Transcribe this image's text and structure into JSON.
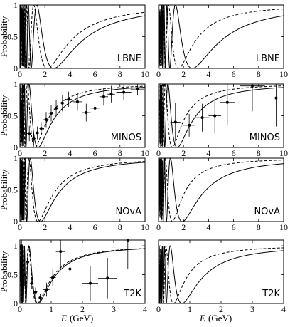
{
  "figure": {
    "y_axis_label": "Probability",
    "x_axis_label_var": "E",
    "x_axis_label_unit": "(GeV)"
  },
  "chart_data": [
    {
      "type": "line",
      "experiment": "LBNE",
      "column": "left",
      "xlim": [
        0,
        10
      ],
      "ylim": [
        0,
        1
      ],
      "xticks": [
        0,
        2,
        4,
        6,
        8,
        10
      ],
      "yticks": [
        0,
        0.5,
        1
      ],
      "ytick_labels": [
        "0",
        "0.5",
        "1"
      ],
      "show_xtick_labels": true,
      "show_ytick_labels": true,
      "series": [
        {
          "style": "solid",
          "min_energy": 2.7
        },
        {
          "style": "dashed",
          "min_energy": 2.2
        }
      ],
      "points": []
    },
    {
      "type": "line",
      "experiment": "LBNE",
      "column": "right",
      "xlim": [
        0,
        10
      ],
      "ylim": [
        0,
        1
      ],
      "xticks": [
        0,
        2,
        4,
        6,
        8,
        10
      ],
      "yticks": [
        0,
        0.5,
        1
      ],
      "show_xtick_labels": true,
      "show_ytick_labels": false,
      "series": [
        {
          "style": "solid",
          "min_energy": 2.7
        },
        {
          "style": "dashed",
          "min_energy": 1.6
        }
      ],
      "points": []
    },
    {
      "type": "scatter",
      "experiment": "MINOS",
      "column": "left",
      "xlim": [
        0,
        10
      ],
      "ylim": [
        0,
        1
      ],
      "xticks": [
        0,
        2,
        4,
        6,
        8,
        10
      ],
      "yticks": [
        0,
        0.5,
        1
      ],
      "ytick_labels": [
        "0",
        "0.5",
        "1"
      ],
      "show_xtick_labels": true,
      "show_ytick_labels": true,
      "series": [
        {
          "style": "solid",
          "min_energy": 1.45
        },
        {
          "style": "dashed",
          "min_energy": 1.2
        }
      ],
      "points": [
        {
          "x": 0.25,
          "y": 0.92,
          "xerr": 0.2,
          "yerr": 0.08
        },
        {
          "x": 0.75,
          "y": 0.22,
          "xerr": 0.2,
          "yerr": 0.12
        },
        {
          "x": 1.1,
          "y": 0.14,
          "xerr": 0.15,
          "yerr": 0.1
        },
        {
          "x": 1.4,
          "y": 0.23,
          "xerr": 0.15,
          "yerr": 0.1
        },
        {
          "x": 1.7,
          "y": 0.3,
          "xerr": 0.15,
          "yerr": 0.1
        },
        {
          "x": 2.1,
          "y": 0.44,
          "xerr": 0.2,
          "yerr": 0.12
        },
        {
          "x": 2.5,
          "y": 0.54,
          "xerr": 0.2,
          "yerr": 0.13
        },
        {
          "x": 2.9,
          "y": 0.62,
          "xerr": 0.2,
          "yerr": 0.13
        },
        {
          "x": 3.4,
          "y": 0.7,
          "xerr": 0.25,
          "yerr": 0.13
        },
        {
          "x": 3.9,
          "y": 0.76,
          "xerr": 0.25,
          "yerr": 0.12
        },
        {
          "x": 4.6,
          "y": 0.72,
          "xerr": 0.35,
          "yerr": 0.14
        },
        {
          "x": 5.3,
          "y": 0.55,
          "xerr": 0.35,
          "yerr": 0.14
        },
        {
          "x": 6.0,
          "y": 0.62,
          "xerr": 0.35,
          "yerr": 0.14
        },
        {
          "x": 6.7,
          "y": 0.8,
          "xerr": 0.35,
          "yerr": 0.14
        },
        {
          "x": 7.3,
          "y": 0.84,
          "xerr": 0.3,
          "yerr": 0.13
        },
        {
          "x": 8.3,
          "y": 0.87,
          "xerr": 0.6,
          "yerr": 0.12
        },
        {
          "x": 9.4,
          "y": 0.92,
          "xerr": 0.55,
          "yerr": 0.1
        }
      ]
    },
    {
      "type": "scatter",
      "experiment": "MINOS",
      "column": "right",
      "xlim": [
        0,
        10
      ],
      "ylim": [
        0,
        1
      ],
      "xticks": [
        0,
        2,
        4,
        6,
        8,
        10
      ],
      "yticks": [
        0,
        0.5,
        1
      ],
      "show_xtick_labels": true,
      "show_ytick_labels": false,
      "series": [
        {
          "style": "solid",
          "min_energy": 1.5
        },
        {
          "style": "dashed",
          "min_energy": 1.1
        }
      ],
      "points": [
        {
          "x": 0.4,
          "y": 0.98,
          "xerr": 0.3,
          "yerr": 0.15
        },
        {
          "x": 1.35,
          "y": 0.4,
          "xerr": 0.4,
          "yerr": 0.3
        },
        {
          "x": 2.45,
          "y": 0.35,
          "xerr": 0.5,
          "yerr": 0.18
        },
        {
          "x": 3.5,
          "y": 0.47,
          "xerr": 0.55,
          "yerr": 0.22
        },
        {
          "x": 4.5,
          "y": 0.5,
          "xerr": 0.5,
          "yerr": 0.28
        },
        {
          "x": 5.5,
          "y": 0.71,
          "xerr": 0.6,
          "yerr": 0.35
        },
        {
          "x": 7.5,
          "y": 0.97,
          "xerr": 1.0,
          "yerr": 0.4
        },
        {
          "x": 9.4,
          "y": 0.78,
          "xerr": 0.6,
          "yerr": 0.45
        }
      ]
    },
    {
      "type": "line",
      "experiment": "NOvA",
      "column": "left",
      "xlim": [
        0,
        10
      ],
      "ylim": [
        0,
        1
      ],
      "xticks": [
        0,
        2,
        4,
        6,
        8,
        10
      ],
      "yticks": [
        0,
        0.5,
        1
      ],
      "ytick_labels": [
        "0",
        "0.5",
        "1"
      ],
      "show_xtick_labels": true,
      "show_ytick_labels": true,
      "series": [
        {
          "style": "solid",
          "min_energy": 1.65
        },
        {
          "style": "dashed",
          "min_energy": 1.45
        }
      ],
      "points": []
    },
    {
      "type": "line",
      "experiment": "NOvA",
      "column": "right",
      "xlim": [
        0,
        10
      ],
      "ylim": [
        0,
        1
      ],
      "xticks": [
        0,
        2,
        4,
        6,
        8,
        10
      ],
      "yticks": [
        0,
        0.5,
        1
      ],
      "show_xtick_labels": true,
      "show_ytick_labels": false,
      "series": [
        {
          "style": "solid",
          "min_energy": 1.9
        },
        {
          "style": "dashed",
          "min_energy": 1.1
        }
      ],
      "points": []
    },
    {
      "type": "scatter",
      "experiment": "T2K",
      "column": "left",
      "xlim": [
        0,
        4
      ],
      "ylim": [
        0,
        1.1
      ],
      "xticks": [
        0,
        1,
        2,
        3,
        4
      ],
      "yticks": [
        0,
        0.5,
        1
      ],
      "ytick_labels": [
        "0",
        "0.5",
        "1"
      ],
      "show_xtick_labels": true,
      "show_ytick_labels": true,
      "series": [
        {
          "style": "solid",
          "min_energy": 0.58
        },
        {
          "style": "dashed",
          "min_energy": 0.55
        }
      ],
      "points": [
        {
          "x": 0.05,
          "y": 1.0,
          "xerr": 0.05,
          "yerr": 0.15
        },
        {
          "x": 0.15,
          "y": 0.5,
          "xerr": 0.05,
          "yerr": 0.2
        },
        {
          "x": 0.25,
          "y": 0.72,
          "xerr": 0.05,
          "yerr": 0.1
        },
        {
          "x": 0.38,
          "y": 0.35,
          "xerr": 0.06,
          "yerr": 0.1
        },
        {
          "x": 0.5,
          "y": 0.2,
          "xerr": 0.06,
          "yerr": 0.08
        },
        {
          "x": 0.65,
          "y": 0.1,
          "xerr": 0.08,
          "yerr": 0.07
        },
        {
          "x": 0.85,
          "y": 0.24,
          "xerr": 0.1,
          "yerr": 0.12
        },
        {
          "x": 1.05,
          "y": 0.45,
          "xerr": 0.1,
          "yerr": 0.15
        },
        {
          "x": 1.3,
          "y": 0.9,
          "xerr": 0.15,
          "yerr": 0.3
        },
        {
          "x": 1.6,
          "y": 0.6,
          "xerr": 0.2,
          "yerr": 0.25
        },
        {
          "x": 2.25,
          "y": 0.35,
          "xerr": 0.25,
          "yerr": 0.3
        },
        {
          "x": 2.8,
          "y": 0.44,
          "xerr": 0.3,
          "yerr": 0.35
        },
        {
          "x": 3.45,
          "y": 1.1,
          "xerr": 0.35,
          "yerr": 0.5
        }
      ]
    },
    {
      "type": "line",
      "experiment": "T2K",
      "column": "right",
      "xlim": [
        0,
        4
      ],
      "ylim": [
        0,
        1.1
      ],
      "xticks": [
        0,
        1,
        2,
        3,
        4
      ],
      "yticks": [
        0,
        0.5,
        1
      ],
      "show_xtick_labels": true,
      "show_ytick_labels": false,
      "series": [
        {
          "style": "solid",
          "min_energy": 0.75
        },
        {
          "style": "dashed",
          "min_energy": 0.48
        }
      ],
      "points": []
    }
  ]
}
